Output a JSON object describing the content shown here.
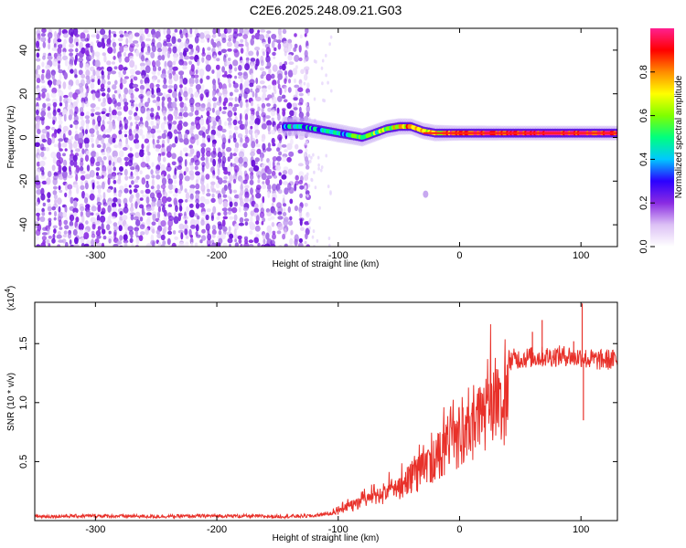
{
  "title": "C2E6.2025.248.09.21.G03",
  "chart_data": [
    {
      "type": "heatmap",
      "title": "C2E6.2025.248.09.21.G03",
      "xlabel": "Height of straight line (km)",
      "ylabel": "Frequency (Hz)",
      "xlim": [
        -350,
        130
      ],
      "ylim": [
        -50,
        50
      ],
      "xticks": [
        -300,
        -200,
        -100,
        0,
        100
      ],
      "xtick_labels": [
        "-300",
        "-200",
        "-100",
        "0",
        "100"
      ],
      "yticks": [
        -40,
        -20,
        0,
        20,
        40
      ],
      "ytick_labels": [
        "-40",
        "-20",
        "0",
        "20",
        "40"
      ],
      "noise_region_x": [
        -350,
        -125
      ],
      "noise_edge_x": -128,
      "isolated_blob": {
        "x": -28,
        "y": -26
      },
      "ridge": {
        "x": [
          -145,
          -130,
          -120,
          -110,
          -100,
          -90,
          -80,
          -70,
          -60,
          -50,
          -40,
          -30,
          -20,
          -10,
          0,
          20,
          40,
          60,
          80,
          100,
          130
        ],
        "freq_hz": [
          5,
          5,
          4,
          3,
          2,
          1,
          0,
          2,
          4,
          5,
          5,
          3,
          2,
          2,
          2,
          2,
          2,
          2,
          2,
          2,
          2
        ],
        "amplitude": [
          0.3,
          0.4,
          0.35,
          0.45,
          0.4,
          0.5,
          0.5,
          0.55,
          0.6,
          0.7,
          0.75,
          0.7,
          0.7,
          0.8,
          0.9,
          0.9,
          0.95,
          0.95,
          0.95,
          0.95,
          0.95
        ]
      },
      "colorbar": {
        "label": "Normalized spectral amplitude",
        "range": [
          0,
          1
        ],
        "ticks": [
          0.0,
          0.2,
          0.4,
          0.6,
          0.8
        ],
        "tick_labels": [
          "0.0",
          "0.2",
          "0.4",
          "0.6",
          "0.8"
        ],
        "colors": [
          "#ffffff",
          "#dcc0f5",
          "#8a2be2",
          "#2b00ff",
          "#00c8ff",
          "#00ff7f",
          "#7fff00",
          "#ffff00",
          "#ff8c00",
          "#ff0000",
          "#ff2090"
        ]
      }
    },
    {
      "type": "line",
      "xlabel": "Height of straight line (km)",
      "ylabel": "SNR (10 * v/v)",
      "y_multiplier": "(x10",
      "y_multiplier_exp": "4",
      "y_multiplier_close": ")",
      "xlim": [
        -350,
        130
      ],
      "ylim": [
        0,
        18500
      ],
      "xticks": [
        -300,
        -200,
        -100,
        0,
        100
      ],
      "xtick_labels": [
        "-300",
        "-200",
        "-100",
        "0",
        "100"
      ],
      "yticks": [
        5000,
        10000,
        15000
      ],
      "ytick_labels": [
        "0.5",
        "1.0",
        "1.5"
      ],
      "series": [
        {
          "name": "SNR",
          "color": "#e8312a",
          "x": [
            -350,
            -300,
            -250,
            -200,
            -150,
            -120,
            -110,
            -100,
            -95,
            -90,
            -85,
            -80,
            -75,
            -70,
            -65,
            -60,
            -55,
            -50,
            -45,
            -40,
            -35,
            -30,
            -25,
            -20,
            -15,
            -10,
            -5,
            0,
            5,
            10,
            15,
            20,
            25,
            30,
            35,
            40,
            45,
            50,
            55,
            60,
            65,
            70,
            75,
            80,
            85,
            90,
            95,
            100,
            105,
            110,
            115,
            120,
            130
          ],
          "y": [
            350,
            400,
            350,
            400,
            350,
            400,
            600,
            1000,
            1400,
            1700,
            1900,
            2200,
            2400,
            2600,
            2800,
            3100,
            3400,
            3800,
            4300,
            4800,
            5300,
            5800,
            6500,
            7200,
            8000,
            8800,
            9400,
            9800,
            10400,
            11000,
            11600,
            12200,
            12700,
            13100,
            13400,
            13600,
            13700,
            13750,
            13800,
            13850,
            13850,
            13900,
            13900,
            13950,
            13950,
            14000,
            13800,
            13900,
            13700,
            13650,
            13600,
            13650,
            13600
          ],
          "spikes": [
            {
              "x": 60,
              "y": 16000
            },
            {
              "x": 68,
              "y": 17000
            },
            {
              "x": 94,
              "y": 15200
            },
            {
              "x": 101,
              "y": 18400
            },
            {
              "x": 102,
              "y": 8500
            }
          ]
        }
      ]
    }
  ]
}
